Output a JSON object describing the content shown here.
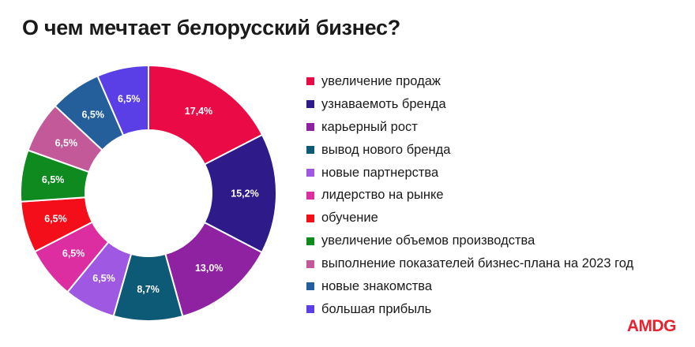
{
  "title": "О чем мечтает белорусский бизнес?",
  "logo": "AMDG",
  "chart_data": {
    "type": "pie",
    "donut": true,
    "series": [
      {
        "name": "увеличение продаж",
        "value": 17.4,
        "label": "17,4%",
        "color": "#ea0a46"
      },
      {
        "name": "узнаваемоть бренда",
        "value": 15.2,
        "label": "15,2%",
        "color": "#2e1a88"
      },
      {
        "name": "карьерный рост",
        "value": 13.0,
        "label": "13,0%",
        "color": "#8e22a0"
      },
      {
        "name": "вывод нового бренда",
        "value": 8.7,
        "label": "8,7%",
        "color": "#0d5a76"
      },
      {
        "name": "новые партнерства",
        "value": 6.5,
        "label": "6,5%",
        "color": "#9e58e2"
      },
      {
        "name": "лидерство на рынке",
        "value": 6.5,
        "label": "6,5%",
        "color": "#dc2ea0"
      },
      {
        "name": "обучение",
        "value": 6.5,
        "label": "6,5%",
        "color": "#f40e1a"
      },
      {
        "name": "увеличение объемов производства",
        "value": 6.5,
        "label": "6,5%",
        "color": "#0e8a1e"
      },
      {
        "name": "выполнение показателей бизнес-плана на 2023 год",
        "value": 6.5,
        "label": "6,5%",
        "color": "#c4599a"
      },
      {
        "name": "новые знакомства",
        "value": 6.5,
        "label": "6,5%",
        "color": "#245f9c"
      },
      {
        "name": "большая прибыль",
        "value": 6.5,
        "label": "6,5%",
        "color": "#5a3fe6"
      }
    ]
  }
}
